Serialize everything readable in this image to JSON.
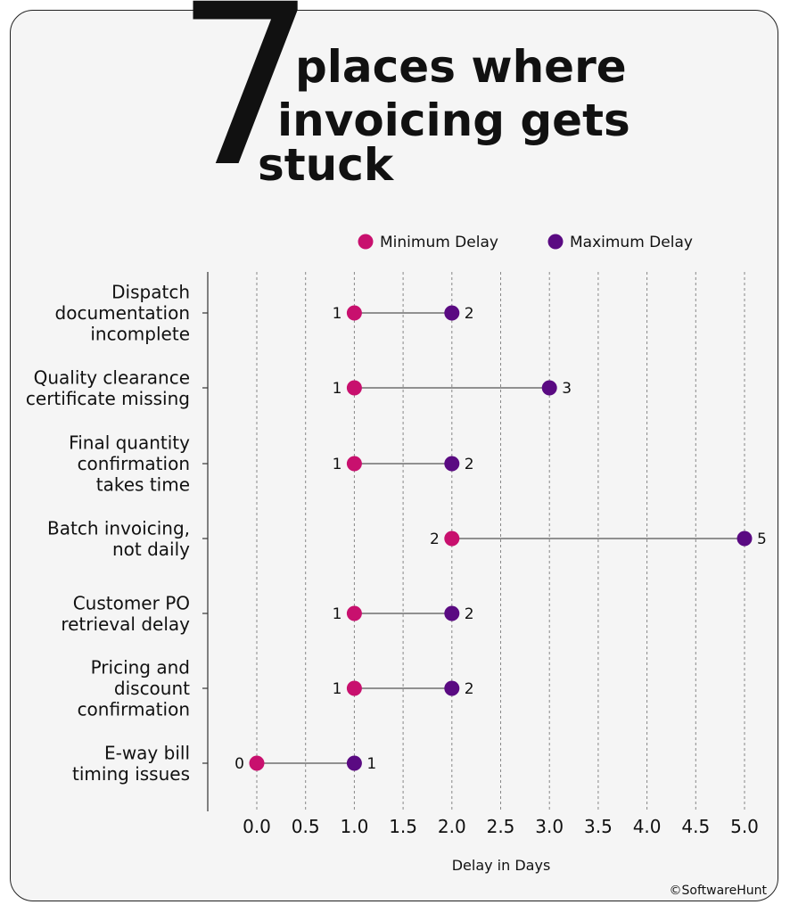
{
  "header": {
    "number": "7",
    "title_lines": [
      "places where",
      "invoicing gets",
      "stuck"
    ]
  },
  "credit": "©SoftwareHunt",
  "colors": {
    "min": "#c8106e",
    "max": "#5a0a82",
    "connector": "#555555",
    "grid": "#888888",
    "text": "#111111"
  },
  "chart_data": {
    "type": "dumbbell",
    "categories": [
      [
        "Dispatch",
        "documentation",
        "incomplete"
      ],
      [
        "Quality clearance",
        "certificate missing"
      ],
      [
        "Final quantity",
        "confirmation",
        "takes time"
      ],
      [
        "Batch invoicing,",
        "not daily"
      ],
      [
        "Customer PO",
        "retrieval delay"
      ],
      [
        "Pricing and",
        "discount",
        "confirmation"
      ],
      [
        "E-way bill",
        "timing issues"
      ]
    ],
    "series": [
      {
        "name": "Minimum Delay",
        "values": [
          1,
          1,
          1,
          2,
          1,
          1,
          0
        ]
      },
      {
        "name": "Maximum Delay",
        "values": [
          2,
          3,
          2,
          5,
          2,
          2,
          1
        ]
      }
    ],
    "xlabel": "Delay in Days",
    "xlim": [
      0,
      5
    ],
    "xticks": [
      "0.0",
      "0.5",
      "1.0",
      "1.5",
      "2.0",
      "2.5",
      "3.0",
      "3.5",
      "4.0",
      "4.5",
      "5.0"
    ],
    "grid": "vertical dashed",
    "legend": "top"
  }
}
